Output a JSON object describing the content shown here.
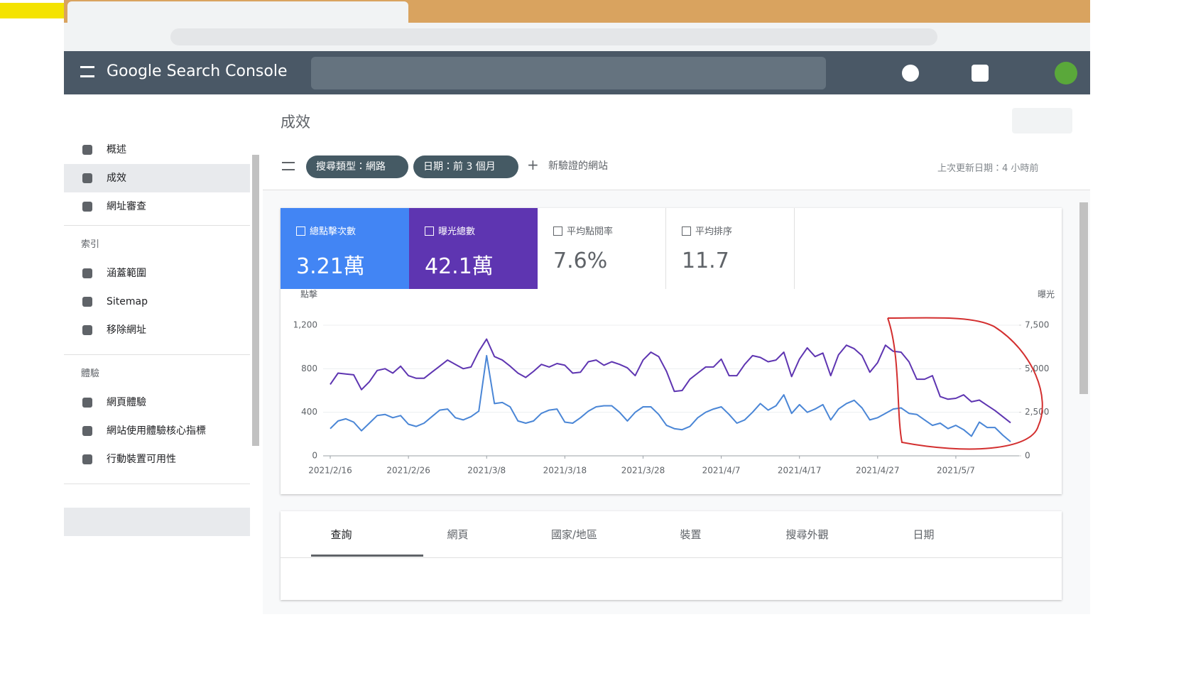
{
  "app": {
    "title": "Google Search Console"
  },
  "sidebar": {
    "items": [
      "概述",
      "成效",
      "網址審查"
    ],
    "sections": [
      {
        "title": "索引",
        "items": [
          "涵蓋範圍",
          "Sitemap",
          "移除網址"
        ]
      },
      {
        "title": "體驗",
        "items": [
          "網頁體驗",
          "網站使用體驗核心指標",
          "行動裝置可用性"
        ]
      }
    ]
  },
  "page_title": "成效",
  "filters": {
    "chips": [
      "搜尋類型：網路",
      "日期：前 3 個月"
    ],
    "add": "新驗證的網站",
    "last_updated": "上次更新日期：4 小時前"
  },
  "metrics": [
    {
      "label": "總點擊次數",
      "value": "3.21萬"
    },
    {
      "label": "曝光總數",
      "value": "42.1萬"
    },
    {
      "label": "平均點閱率",
      "value": "7.6%"
    },
    {
      "label": "平均排序",
      "value": "11.7"
    }
  ],
  "chart_data": {
    "type": "line",
    "ylabel": "點擊",
    "y2label": "曝光",
    "categories": [
      "2021/2/16",
      null,
      null,
      null,
      null,
      null,
      null,
      null,
      null,
      null,
      "2021/2/26",
      null,
      null,
      null,
      null,
      null,
      null,
      null,
      null,
      null,
      "2021/3/8",
      null,
      null,
      null,
      null,
      null,
      null,
      null,
      null,
      null,
      "2021/3/18",
      null,
      null,
      null,
      null,
      null,
      null,
      null,
      null,
      null,
      "2021/3/28",
      null,
      null,
      null,
      null,
      null,
      null,
      null,
      null,
      null,
      "2021/4/7",
      null,
      null,
      null,
      null,
      null,
      null,
      null,
      null,
      null,
      "2021/4/17",
      null,
      null,
      null,
      null,
      null,
      null,
      null,
      null,
      null,
      "2021/4/27",
      null,
      null,
      null,
      null,
      null,
      null,
      null,
      null,
      null,
      "2021/5/7",
      null,
      null,
      null,
      null,
      null,
      null,
      null
    ],
    "series": [
      {
        "name": "總點擊次數",
        "color": "#4a86d6",
        "axis": "y",
        "values": [
          250,
          320,
          340,
          310,
          230,
          300,
          370,
          380,
          350,
          370,
          290,
          270,
          300,
          360,
          420,
          430,
          350,
          330,
          360,
          410,
          920,
          480,
          490,
          450,
          320,
          300,
          320,
          390,
          420,
          430,
          310,
          300,
          350,
          410,
          450,
          460,
          460,
          400,
          320,
          400,
          450,
          450,
          380,
          280,
          250,
          240,
          270,
          350,
          400,
          430,
          450,
          380,
          300,
          330,
          400,
          480,
          420,
          460,
          560,
          390,
          470,
          400,
          430,
          470,
          330,
          430,
          480,
          510,
          440,
          330,
          350,
          390,
          430,
          440,
          390,
          380,
          330,
          280,
          300,
          250,
          280,
          240,
          180,
          310,
          260,
          260,
          190,
          130
        ]
      },
      {
        "name": "曝光總數",
        "color": "#5e35b1",
        "axis": "y2",
        "values": [
          4100,
          4750,
          4700,
          4650,
          3800,
          4250,
          4900,
          5000,
          4750,
          5150,
          4600,
          4450,
          4450,
          4800,
          5150,
          5500,
          5250,
          5000,
          5100,
          6000,
          6700,
          5700,
          5500,
          5150,
          4750,
          4500,
          4850,
          5250,
          5100,
          5300,
          5200,
          4750,
          4800,
          5400,
          5500,
          5200,
          5400,
          5250,
          5050,
          4600,
          5500,
          5950,
          5700,
          4850,
          3700,
          3750,
          4400,
          4750,
          5100,
          5100,
          5550,
          4600,
          4600,
          5250,
          5750,
          5650,
          5400,
          5500,
          5950,
          4550,
          5550,
          6200,
          5700,
          5900,
          4600,
          5800,
          6350,
          6150,
          5750,
          4800,
          5350,
          6350,
          6000,
          5950,
          5400,
          4400,
          4400,
          4600,
          3400,
          3250,
          3300,
          3500,
          3100,
          3200,
          2900,
          2600,
          2250,
          1900
        ]
      }
    ],
    "ylim": [
      0,
      1200
    ],
    "yticks": [
      0,
      400,
      800,
      {
        "value": 1200,
        "label": "1,200"
      }
    ],
    "y2lim": [
      0,
      7500
    ],
    "y2ticks": [
      0,
      {
        "value": 2500,
        "label": "2,500"
      },
      {
        "value": 5000,
        "label": "5,000"
      },
      {
        "value": 7500,
        "label": "7,500"
      }
    ],
    "grid": true
  },
  "tabs": [
    "查詢",
    "網頁",
    "國家/地區",
    "裝置",
    "搜尋外觀",
    "日期"
  ]
}
